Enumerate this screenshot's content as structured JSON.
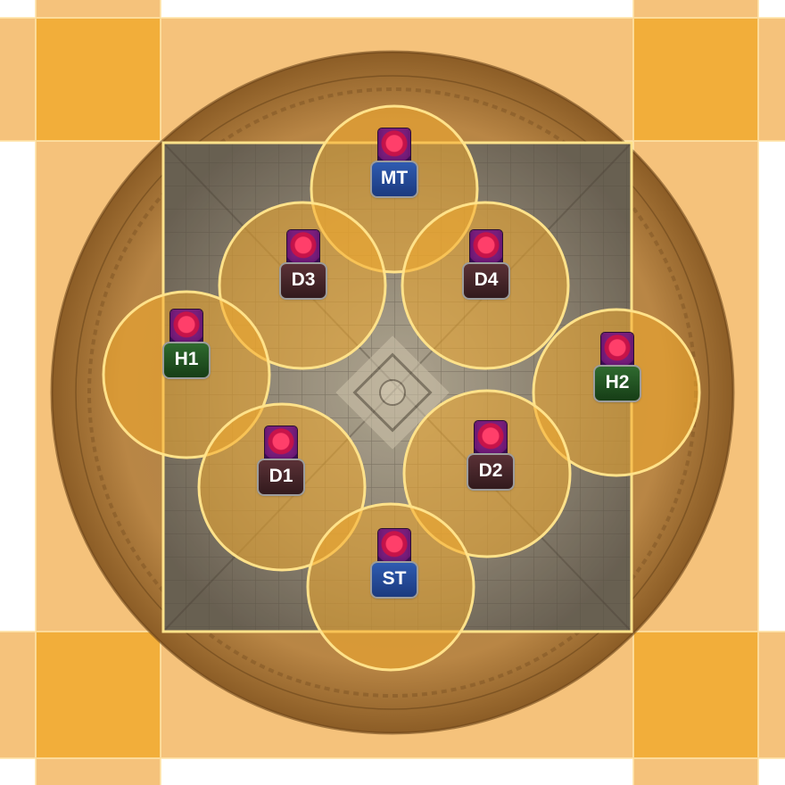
{
  "colors": {
    "background": "#ffffff",
    "safe_zone_light": "#f5c27b",
    "safe_zone_dark": "#f2ae3a",
    "arena_rim": "#c9893c",
    "arena_floor": "#7f7a72",
    "aoe_circle_fill": "#f2a92b",
    "aoe_circle_stroke": "#ffe28a",
    "tank_badge": "#2a4f9e",
    "healer_badge": "#244f24",
    "dps_badge": "#472629"
  },
  "icons": {
    "debuff": "purple-orb-debuff-icon"
  },
  "markers": [
    {
      "role_type": "tank",
      "label": "MT"
    },
    {
      "role_type": "dps",
      "label": "D3"
    },
    {
      "role_type": "dps",
      "label": "D4"
    },
    {
      "role_type": "healer",
      "label": "H1"
    },
    {
      "role_type": "healer",
      "label": "H2"
    },
    {
      "role_type": "dps",
      "label": "D1"
    },
    {
      "role_type": "dps",
      "label": "D2"
    },
    {
      "role_type": "tank",
      "label": "ST"
    }
  ]
}
